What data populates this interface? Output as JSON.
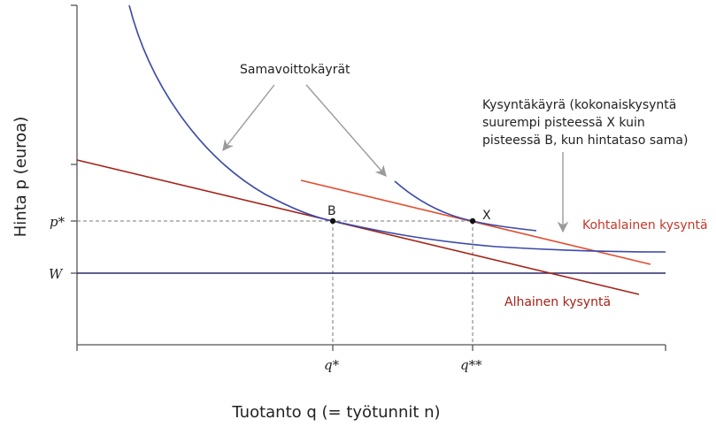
{
  "axes": {
    "y_title": "Hinta p (euroa)",
    "x_title": "Tuotanto q (= työtunnit n)",
    "y_tick_pstar": "p*",
    "y_tick_w": "W",
    "x_tick_q1": "q*",
    "x_tick_q2": "q**"
  },
  "points": {
    "b": "B",
    "x": "X"
  },
  "labels": {
    "isoprofit": "Samavoittokäyrät",
    "demand_note_lines": [
      "Kysyntäkäyrä (kokonaiskysyntä",
      "suurempi pisteessä X kuin",
      "pisteessä B, kun hintataso sama)"
    ],
    "moderate_demand": "Kohtalainen kysyntä",
    "low_demand": "Alhainen kysyntä"
  },
  "colors": {
    "isoprofit_curve": "#3b4aa8",
    "moderate_demand": "#e34a2c",
    "low_demand": "#a32318",
    "wage_line": "#2c2a6b",
    "arrows": "#9a9a9a",
    "axes": "#555555",
    "guides": "#777777"
  }
}
